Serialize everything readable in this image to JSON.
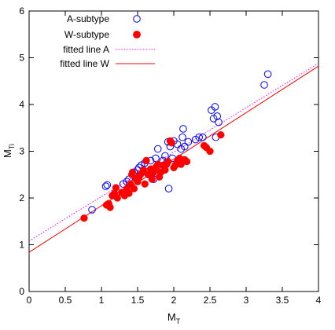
{
  "chart_data": {
    "type": "scatter",
    "xlabel": "M",
    "xlabel_sub": "T",
    "ylabel": "M",
    "ylabel_sub": "Ti",
    "xlim": [
      0,
      4
    ],
    "ylim": [
      0,
      6
    ],
    "x_ticks": [
      "0",
      "0.5",
      "1",
      "1.5",
      "2",
      "2.5",
      "3",
      "3.5",
      "4"
    ],
    "y_ticks": [
      "0",
      "1",
      "2",
      "3",
      "4",
      "5",
      "6"
    ],
    "grid": false,
    "legend_position": "top-left",
    "series": [
      {
        "name": "A-subtype",
        "marker": "open-circle",
        "color": "#0000ff",
        "points": [
          [
            0.87,
            1.75
          ],
          [
            1.06,
            2.25
          ],
          [
            1.08,
            2.28
          ],
          [
            1.3,
            2.3
          ],
          [
            1.35,
            2.35
          ],
          [
            1.38,
            2.4
          ],
          [
            1.45,
            2.55
          ],
          [
            1.5,
            2.6
          ],
          [
            1.52,
            2.65
          ],
          [
            1.55,
            2.7
          ],
          [
            1.6,
            2.75
          ],
          [
            1.65,
            2.5
          ],
          [
            1.68,
            2.8
          ],
          [
            1.72,
            2.4
          ],
          [
            1.75,
            2.85
          ],
          [
            1.78,
            3.05
          ],
          [
            1.8,
            2.6
          ],
          [
            1.85,
            2.8
          ],
          [
            1.88,
            2.9
          ],
          [
            1.9,
            2.75
          ],
          [
            1.92,
            3.2
          ],
          [
            1.93,
            2.2
          ],
          [
            1.95,
            3.1
          ],
          [
            1.98,
            2.85
          ],
          [
            2.0,
            3.22
          ],
          [
            2.05,
            3.15
          ],
          [
            2.1,
            3.05
          ],
          [
            2.12,
            3.3
          ],
          [
            2.13,
            3.48
          ],
          [
            2.15,
            3.1
          ],
          [
            2.2,
            3.2
          ],
          [
            2.3,
            3.25
          ],
          [
            2.35,
            3.3
          ],
          [
            2.4,
            3.3
          ],
          [
            2.52,
            3.88
          ],
          [
            2.55,
            3.7
          ],
          [
            2.57,
            3.95
          ],
          [
            2.58,
            3.3
          ],
          [
            2.6,
            3.75
          ],
          [
            2.62,
            3.62
          ],
          [
            3.25,
            4.42
          ],
          [
            3.3,
            4.65
          ]
        ]
      },
      {
        "name": "W-subtype",
        "marker": "filled-circle",
        "color": "#ff0000",
        "points": [
          [
            0.76,
            1.57
          ],
          [
            1.07,
            1.85
          ],
          [
            1.1,
            1.88
          ],
          [
            1.12,
            1.8
          ],
          [
            1.15,
            2.05
          ],
          [
            1.18,
            2.1
          ],
          [
            1.2,
            2.22
          ],
          [
            1.22,
            2.0
          ],
          [
            1.28,
            2.12
          ],
          [
            1.32,
            2.05
          ],
          [
            1.35,
            2.2
          ],
          [
            1.38,
            2.1
          ],
          [
            1.4,
            2.3
          ],
          [
            1.42,
            2.5
          ],
          [
            1.43,
            2.55
          ],
          [
            1.45,
            2.2
          ],
          [
            1.48,
            2.4
          ],
          [
            1.5,
            2.35
          ],
          [
            1.52,
            2.45
          ],
          [
            1.55,
            2.52
          ],
          [
            1.58,
            2.6
          ],
          [
            1.6,
            2.3
          ],
          [
            1.62,
            2.8
          ],
          [
            1.65,
            2.5
          ],
          [
            1.68,
            2.62
          ],
          [
            1.7,
            2.4
          ],
          [
            1.72,
            2.55
          ],
          [
            1.75,
            2.65
          ],
          [
            1.78,
            2.72
          ],
          [
            1.8,
            2.45
          ],
          [
            1.82,
            2.55
          ],
          [
            1.85,
            2.7
          ],
          [
            1.88,
            2.6
          ],
          [
            1.9,
            2.72
          ],
          [
            1.92,
            2.78
          ],
          [
            1.95,
            3.22
          ],
          [
            1.97,
            3.18
          ],
          [
            2.0,
            2.65
          ],
          [
            2.02,
            2.7
          ],
          [
            2.05,
            2.78
          ],
          [
            2.08,
            2.85
          ],
          [
            2.1,
            2.72
          ],
          [
            2.15,
            2.82
          ],
          [
            2.18,
            2.78
          ],
          [
            2.42,
            3.12
          ],
          [
            2.45,
            3.08
          ],
          [
            2.5,
            3.0
          ],
          [
            2.65,
            3.35
          ]
        ]
      },
      {
        "name": "fitted line A",
        "type": "line",
        "style": "dotted",
        "color": "#ff00ff",
        "intercept": 1.08,
        "slope": 0.95
      },
      {
        "name": "fitted line W",
        "type": "line",
        "style": "solid",
        "color": "#ff0000",
        "intercept": 0.84,
        "slope": 0.995
      }
    ]
  }
}
